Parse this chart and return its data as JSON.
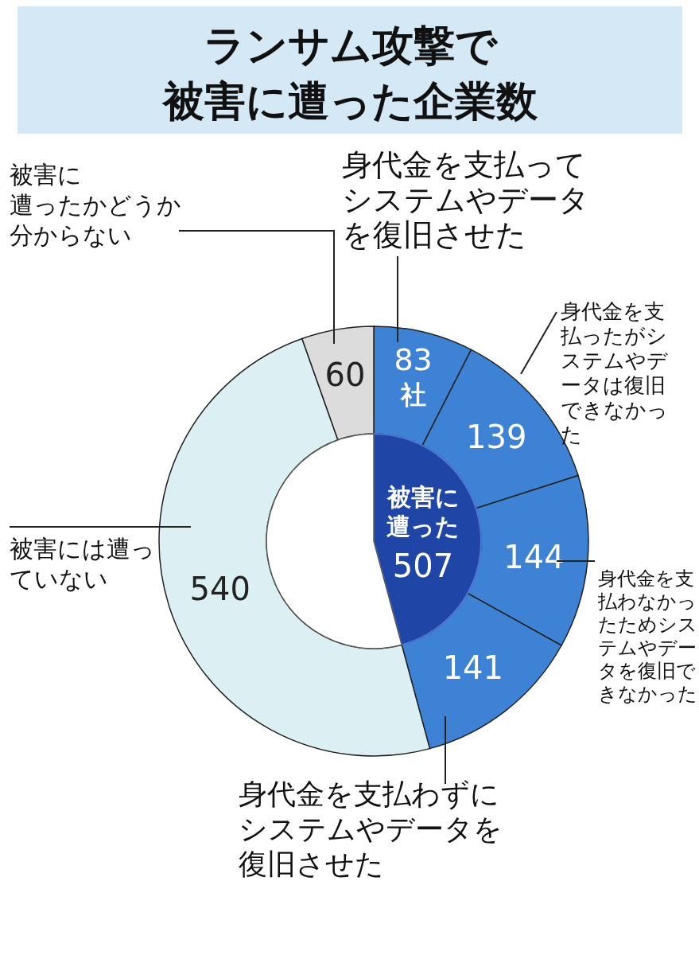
{
  "chart_data": [
    {
      "type": "donut",
      "title": "ランサム攻撃で被害に遭った企業数",
      "categories": [
        "身代金を支払ってシステムやデータを復旧させた",
        "身代金を支払ったがシステムやデータは復旧できなかった",
        "身代金を支払わなかったためシステムやデータを復旧できなかった",
        "身代金を支払わずにシステムやデータを復旧させた",
        "被害には遭っていない",
        "被害に遭ったかどうか分からない"
      ],
      "values": [
        83,
        139,
        144,
        141,
        540,
        60
      ],
      "value_labels": [
        "83社",
        "139",
        "144",
        "141",
        "540",
        "60"
      ],
      "colors": [
        "#3d82d4",
        "#3d82d4",
        "#3d82d4",
        "#3d82d4",
        "#dcf0f4",
        "#dcdcdc"
      ]
    },
    {
      "type": "pie",
      "categories": [
        "被害に遭った",
        null
      ],
      "values": [
        507,
        600
      ],
      "value_labels": [
        "507",
        null
      ],
      "colors": [
        "#1f45a6",
        "#ffffff"
      ]
    }
  ]
}
